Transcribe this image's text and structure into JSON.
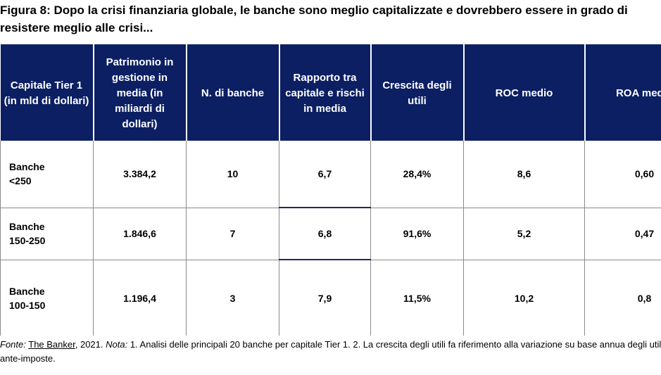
{
  "title": "Figura 8: Dopo la crisi finanziaria globale, le banche sono meglio capitalizzate e dovrebbero essere in grado di resistere meglio alle crisi...",
  "table": {
    "headers": [
      "Capitale Tier 1 (in mld di dollari)",
      "Patrimonio in gestione in media (in miliardi di dollari)",
      "N. di banche",
      "Rapporto tra capitale e rischi in media",
      "Crescita degli utili",
      "ROC medio",
      "ROA medio"
    ],
    "rows": [
      {
        "label_1": "Banche",
        "label_2": "<250",
        "cells": [
          "3.384,2",
          "10",
          "6,7",
          "28,4%",
          "8,6",
          "0,60"
        ]
      },
      {
        "label_1": "Banche",
        "label_2": "150-250",
        "cells": [
          "1.846,6",
          "7",
          "6,8",
          "91,6%",
          "5,2",
          "0,47"
        ]
      },
      {
        "label_1": "Banche",
        "label_2": "100-150",
        "cells": [
          "1.196,4",
          "3",
          "7,9",
          "11,5%",
          "10,2",
          "0,8"
        ]
      }
    ]
  },
  "source": {
    "fonte_label": "Fonte:",
    "fonte_link": "The Banker",
    "fonte_rest": ", 2021. ",
    "nota_label": "Nota:",
    "nota_text": " 1. Analisi delle principali 20 banche per capitale Tier 1. 2. La crescita degli utili fa riferimento alla variazione su base annua degli utili ante-imposte."
  }
}
